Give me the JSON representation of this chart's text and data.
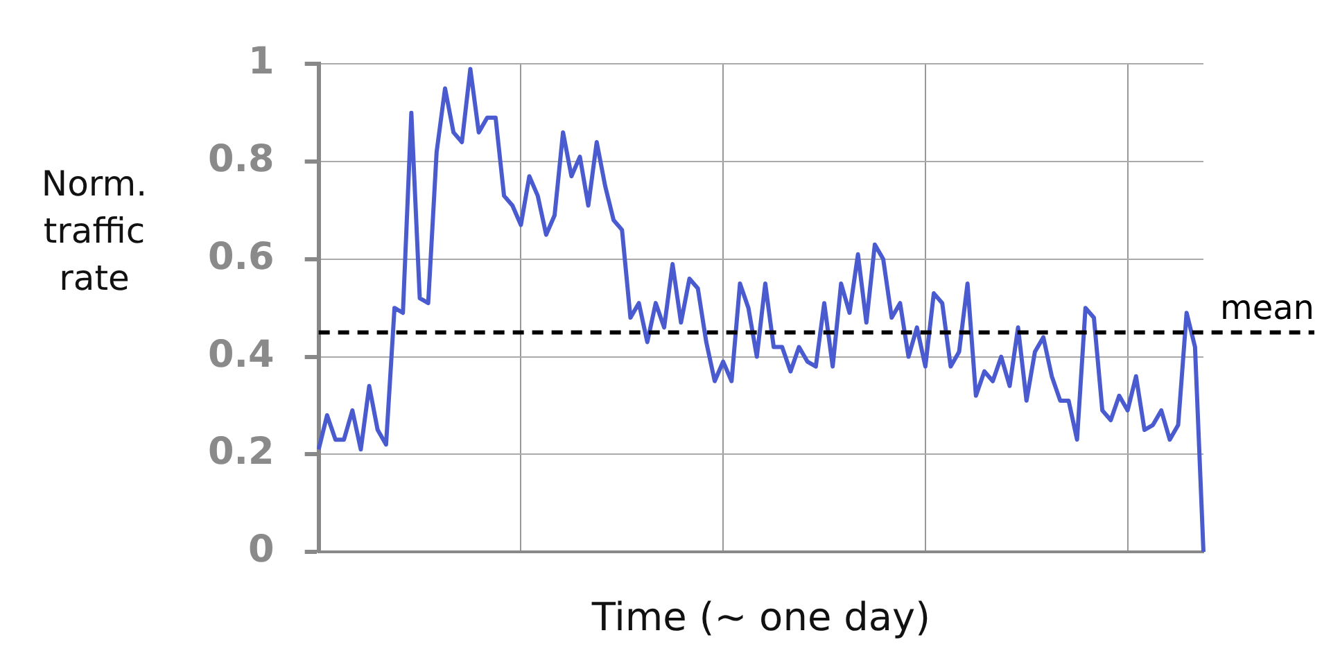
{
  "chart_data": {
    "type": "line",
    "xlabel": "Time (~ one day)",
    "ylabel": "Norm. traffic rate",
    "categories": [
      null,
      null,
      null,
      null,
      null,
      null,
      null,
      null,
      null,
      null,
      null,
      null,
      null,
      null,
      null,
      null,
      null,
      null,
      null,
      null,
      null,
      null,
      null,
      null,
      null,
      null,
      null,
      null,
      null,
      null,
      null,
      null,
      null,
      null,
      null,
      null,
      null,
      null,
      null,
      null,
      null,
      null,
      null,
      null,
      null,
      null,
      null,
      null,
      null,
      null,
      null,
      null,
      null,
      null,
      null,
      null,
      null,
      null,
      null,
      null,
      null,
      null,
      null,
      null,
      null,
      null,
      null,
      null,
      null,
      null,
      null,
      null,
      null,
      null,
      null,
      null,
      null,
      null,
      null,
      null,
      null,
      null,
      null,
      null,
      null,
      null,
      null,
      null,
      null,
      null,
      null,
      null,
      null,
      null,
      null,
      null,
      null,
      null,
      null,
      null,
      null,
      null,
      null,
      null,
      null,
      null
    ],
    "series": [
      {
        "color": "#4a5bd0",
        "values": [
          0.21,
          0.28,
          0.23,
          0.23,
          0.29,
          0.21,
          0.34,
          0.25,
          0.22,
          0.5,
          0.49,
          0.9,
          0.52,
          0.51,
          0.82,
          0.95,
          0.86,
          0.84,
          0.99,
          0.86,
          0.89,
          0.89,
          0.73,
          0.71,
          0.67,
          0.77,
          0.73,
          0.65,
          0.69,
          0.86,
          0.77,
          0.81,
          0.71,
          0.84,
          0.75,
          0.68,
          0.66,
          0.48,
          0.51,
          0.43,
          0.51,
          0.46,
          0.59,
          0.47,
          0.56,
          0.54,
          0.43,
          0.35,
          0.39,
          0.35,
          0.55,
          0.5,
          0.4,
          0.55,
          0.42,
          0.42,
          0.37,
          0.42,
          0.39,
          0.38,
          0.51,
          0.38,
          0.55,
          0.49,
          0.61,
          0.47,
          0.63,
          0.6,
          0.48,
          0.51,
          0.4,
          0.46,
          0.38,
          0.53,
          0.51,
          0.38,
          0.41,
          0.55,
          0.32,
          0.37,
          0.35,
          0.4,
          0.34,
          0.46,
          0.31,
          0.41,
          0.44,
          0.36,
          0.31,
          0.31,
          0.23,
          0.5,
          0.48,
          0.29,
          0.27,
          0.32,
          0.29,
          0.36,
          0.25,
          0.26,
          0.29,
          0.23,
          0.26,
          0.49,
          0.42,
          0
        ]
      }
    ],
    "ylim": [
      0,
      1
    ],
    "yticks": [
      0,
      0.2,
      0.4,
      0.6,
      0.8,
      1
    ],
    "grid": true,
    "legend": false,
    "marker": "none",
    "line_style": "solid",
    "ref_lines": [
      {
        "axis": "y",
        "value": 0.45,
        "label": "mean",
        "color": "#000000",
        "line_style": "dashed"
      }
    ]
  }
}
